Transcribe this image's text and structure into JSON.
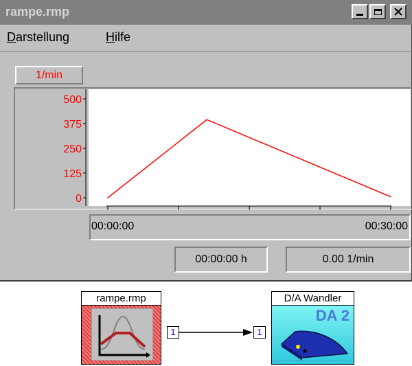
{
  "window": {
    "title": "rampe.rmp",
    "controls": {
      "minimize_icon": "minimize-icon",
      "maximize_icon": "maximize-icon",
      "close_icon": "close-icon"
    }
  },
  "menu": {
    "items": [
      {
        "label_first": "D",
        "label_rest": "arstellung"
      },
      {
        "label_first": "H",
        "label_rest": "ilfe"
      }
    ]
  },
  "chart": {
    "unit_label": "1/min",
    "y_ticks": [
      "500",
      "375",
      "250",
      "125",
      "0"
    ],
    "x_tick_start": "00:00:00",
    "x_tick_end": "00:30:00"
  },
  "chart_data": {
    "type": "line",
    "x": [
      0.0,
      0.35,
      1.0
    ],
    "y": [
      0,
      395,
      5
    ],
    "ylim": [
      0,
      500
    ],
    "xlim": [
      0,
      1
    ],
    "grid": false,
    "colors": {
      "line": "#ff0000",
      "tick_labels": "#ff0000"
    }
  },
  "status": {
    "time_value": "00:00:00 h",
    "rate_value": "0.00 1/min"
  },
  "diagram": {
    "source_block": {
      "title": "rampe.rmp",
      "port_label": "1",
      "icon": "ramp-curve-icon"
    },
    "target_block": {
      "title": "D/A Wandler",
      "badge": "DA 2",
      "port_label": "1",
      "icon": "da-converter-device-icon"
    }
  }
}
